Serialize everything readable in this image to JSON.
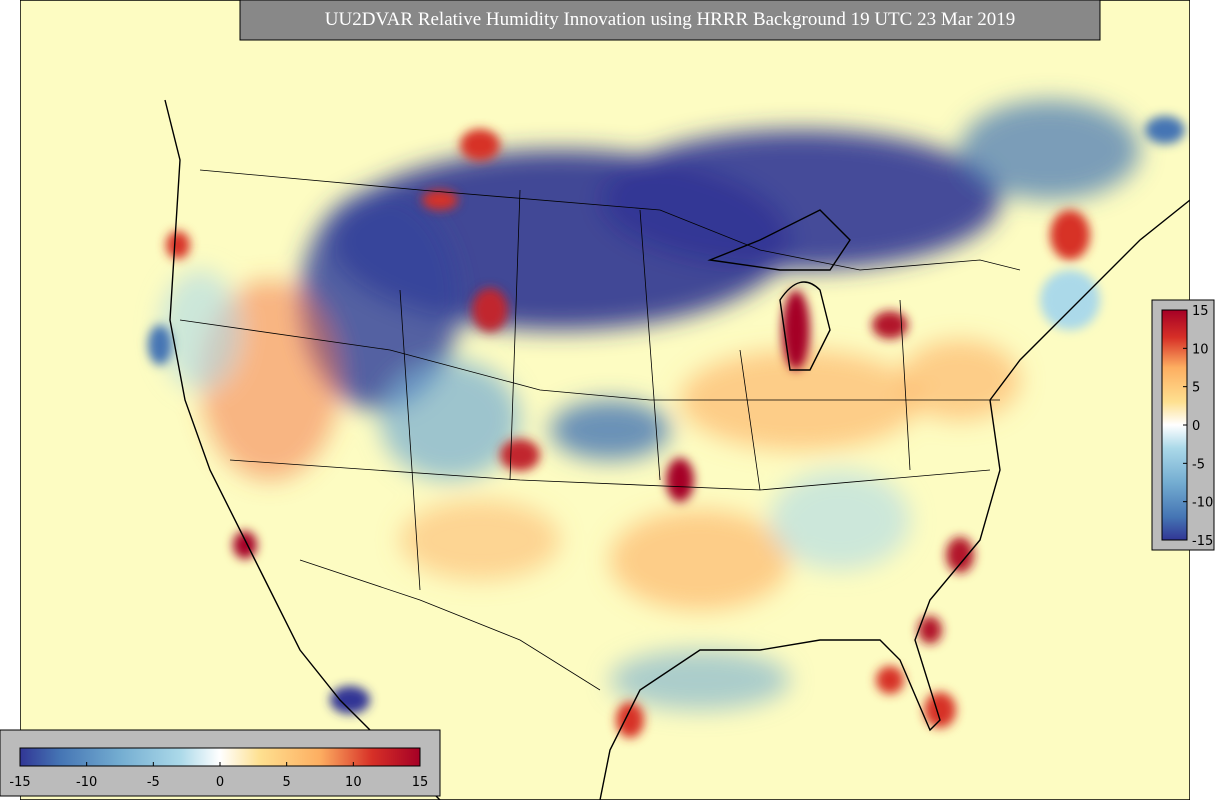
{
  "title": "UU2DVAR Relative Humidity Innovation using HRRR Background 19 UTC 23 Mar 2019",
  "colorbars": [
    {
      "orientation": "vertical",
      "lim": [
        -15,
        15
      ],
      "ticks": [
        15,
        10,
        5,
        0,
        -5,
        -10,
        -15
      ]
    },
    {
      "orientation": "horizontal",
      "lim": [
        -15,
        15
      ],
      "ticks": [
        -15,
        -10,
        -5,
        0,
        5,
        10,
        15
      ]
    }
  ]
}
